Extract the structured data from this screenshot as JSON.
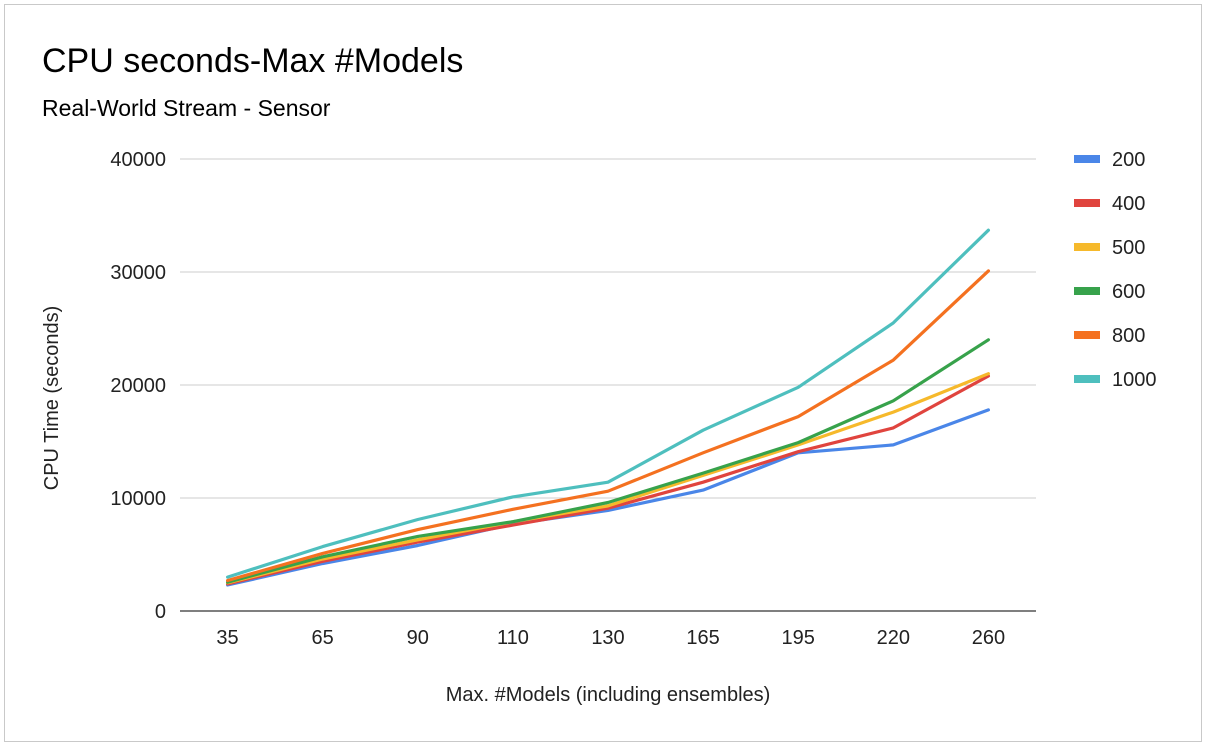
{
  "chart_data": {
    "type": "line",
    "title": "CPU seconds-Max #Models",
    "subtitle": "Real-World Stream - Sensor",
    "xlabel": "Max. #Models (including ensembles)",
    "ylabel": "CPU Time (seconds)",
    "categories": [
      "35",
      "65",
      "90",
      "110",
      "130",
      "165",
      "195",
      "220",
      "260"
    ],
    "ylim": [
      0,
      40000
    ],
    "yticks": [
      "0",
      "10000",
      "20000",
      "30000",
      "40000"
    ],
    "grid": true,
    "legend_position": "right",
    "series": [
      {
        "name": "200",
        "color": "#4a86e8",
        "values": [
          2300,
          4200,
          5800,
          7700,
          8900,
          10700,
          14000,
          14700,
          17800
        ]
      },
      {
        "name": "400",
        "color": "#e0443e",
        "values": [
          2400,
          4400,
          6100,
          7600,
          9100,
          11400,
          14100,
          16200,
          20800
        ]
      },
      {
        "name": "500",
        "color": "#f6b92b",
        "values": [
          2500,
          4600,
          6300,
          7900,
          9300,
          12000,
          14700,
          17600,
          21000
        ]
      },
      {
        "name": "600",
        "color": "#37a24b",
        "values": [
          2550,
          4800,
          6600,
          7900,
          9600,
          12200,
          14900,
          18600,
          24000
        ]
      },
      {
        "name": "800",
        "color": "#f47120",
        "values": [
          2700,
          5100,
          7200,
          9000,
          10600,
          14000,
          17200,
          22200,
          30100
        ]
      },
      {
        "name": "1000",
        "color": "#4ebfbe",
        "values": [
          3000,
          5700,
          8100,
          10100,
          11400,
          16000,
          19800,
          25500,
          33700
        ]
      }
    ]
  }
}
